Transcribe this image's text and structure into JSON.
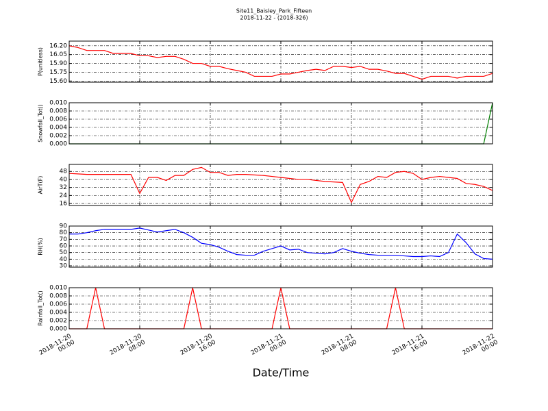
{
  "title": "Site11_Baisley_Park_Fifteen",
  "subtitle": "2018-11-22 - (2018-326)",
  "xlabel": "Date/Time",
  "x": [
    "2018-11-20 00:00",
    "2018-11-20 01:00",
    "2018-11-20 02:00",
    "2018-11-20 03:00",
    "2018-11-20 04:00",
    "2018-11-20 05:00",
    "2018-11-20 06:00",
    "2018-11-20 07:00",
    "2018-11-20 08:00",
    "2018-11-20 09:00",
    "2018-11-20 10:00",
    "2018-11-20 11:00",
    "2018-11-20 12:00",
    "2018-11-20 13:00",
    "2018-11-20 14:00",
    "2018-11-20 15:00",
    "2018-11-20 16:00",
    "2018-11-20 17:00",
    "2018-11-20 18:00",
    "2018-11-20 19:00",
    "2018-11-20 20:00",
    "2018-11-20 21:00",
    "2018-11-20 22:00",
    "2018-11-20 23:00",
    "2018-11-21 00:00",
    "2018-11-21 01:00",
    "2018-11-21 02:00",
    "2018-11-21 03:00",
    "2018-11-21 04:00",
    "2018-11-21 05:00",
    "2018-11-21 06:00",
    "2018-11-21 07:00",
    "2018-11-21 08:00",
    "2018-11-21 09:00",
    "2018-11-21 10:00",
    "2018-11-21 11:00",
    "2018-11-21 12:00",
    "2018-11-21 13:00",
    "2018-11-21 14:00",
    "2018-11-21 15:00",
    "2018-11-21 16:00",
    "2018-11-21 17:00",
    "2018-11-21 18:00",
    "2018-11-21 19:00",
    "2018-11-21 20:00",
    "2018-11-21 21:00",
    "2018-11-21 22:00",
    "2018-11-21 23:00",
    "2018-11-22 00:00"
  ],
  "xlim": [
    "2018-11-20 00:00",
    "2018-11-22 00:00"
  ],
  "xticks": [
    "2018-11-20 00:00",
    "2018-11-20 08:00",
    "2018-11-20 16:00",
    "2018-11-21 00:00",
    "2018-11-21 08:00",
    "2018-11-21 16:00",
    "2018-11-22 00:00"
  ],
  "chart_data": [
    {
      "type": "line",
      "ylabel": "P(unitless)",
      "color": "#ff0000",
      "grid": true,
      "ylim": [
        15.58,
        16.28
      ],
      "yticks": [
        {
          "value": 15.6,
          "label": "15.60"
        },
        15.75,
        {
          "value": 15.9,
          "label": "15.90"
        },
        16.05,
        {
          "value": 16.2,
          "label": "16.20"
        }
      ],
      "values": [
        16.2,
        16.17,
        16.12,
        16.12,
        16.12,
        16.07,
        16.07,
        16.07,
        16.03,
        16.03,
        16.0,
        16.02,
        16.02,
        15.97,
        15.9,
        15.9,
        15.85,
        15.85,
        15.81,
        15.78,
        15.75,
        15.68,
        15.68,
        15.68,
        15.72,
        15.72,
        15.75,
        15.78,
        15.8,
        15.78,
        15.85,
        15.85,
        15.83,
        15.85,
        15.8,
        15.8,
        15.77,
        15.73,
        15.73,
        15.68,
        15.63,
        15.68,
        15.68,
        15.68,
        15.65,
        15.68,
        15.68,
        15.68,
        15.73
      ]
    },
    {
      "type": "line",
      "ylabel": "Snowfall_Tot()",
      "color": "#007f00",
      "grid": true,
      "ylim": [
        0,
        0.01
      ],
      "yticks": [
        {
          "value": 0,
          "label": "0.000"
        },
        0.002,
        0.004,
        0.006,
        0.008,
        {
          "value": 0.01,
          "label": "0.010"
        }
      ],
      "values": [
        0,
        0,
        0,
        0,
        0,
        0,
        0,
        0,
        0,
        0,
        0,
        0,
        0,
        0,
        0,
        0,
        0,
        0,
        0,
        0,
        0,
        0,
        0,
        0,
        0,
        0,
        0,
        0,
        0,
        0,
        0,
        0,
        0,
        0,
        0,
        0,
        0,
        0,
        0,
        0,
        0,
        0,
        0,
        0,
        0,
        0,
        0,
        0,
        0.01
      ]
    },
    {
      "type": "line",
      "ylabel": "AirT(F)",
      "color": "#ff0000",
      "grid": true,
      "ylim": [
        14,
        55
      ],
      "yticks": [
        16,
        24,
        32,
        40,
        48
      ],
      "values": [
        46,
        45.5,
        45,
        45,
        45,
        45,
        45,
        45,
        26,
        42,
        42,
        39,
        44,
        44,
        50,
        52,
        47,
        47,
        44,
        45,
        45,
        44.5,
        44,
        43,
        42,
        41,
        40,
        40,
        39,
        38,
        37.5,
        37,
        17,
        35,
        38,
        43,
        42,
        47,
        48,
        46,
        40,
        42,
        43,
        42,
        41,
        36,
        35,
        33,
        29
      ]
    },
    {
      "type": "line",
      "ylabel": "RH(%)",
      "color": "#0000ff",
      "grid": true,
      "ylim": [
        28,
        90
      ],
      "yticks": [
        30,
        40,
        50,
        60,
        70,
        80,
        90
      ],
      "values": [
        78,
        78,
        80,
        83,
        85,
        85,
        85,
        85,
        87,
        84,
        81,
        83,
        85,
        80,
        73,
        64,
        62,
        58,
        52,
        47,
        46,
        46,
        52,
        56,
        60,
        54,
        55,
        50,
        49,
        48,
        50,
        56,
        52,
        49,
        47,
        46,
        46,
        46,
        45,
        44,
        44,
        45,
        44,
        50,
        78,
        65,
        48,
        41,
        40
      ]
    },
    {
      "type": "line",
      "ylabel": "Rainfall_Tot()",
      "color": "#ff0000",
      "grid": true,
      "ylim": [
        0,
        0.01
      ],
      "yticks": [
        {
          "value": 0,
          "label": "0.000"
        },
        0.002,
        0.004,
        0.006,
        0.008,
        {
          "value": 0.01,
          "label": "0.010"
        }
      ],
      "values": [
        0,
        0,
        0,
        0.01,
        0,
        0,
        0,
        0,
        0,
        0,
        0,
        0,
        0,
        0,
        0.01,
        0,
        0,
        0,
        0,
        0,
        0,
        0,
        0,
        0,
        0.01,
        0,
        0,
        0,
        0,
        0,
        0,
        0,
        0,
        0,
        0,
        0,
        0,
        0.01,
        0,
        0,
        0,
        0,
        0,
        0,
        0,
        0,
        0,
        0,
        0
      ]
    }
  ]
}
